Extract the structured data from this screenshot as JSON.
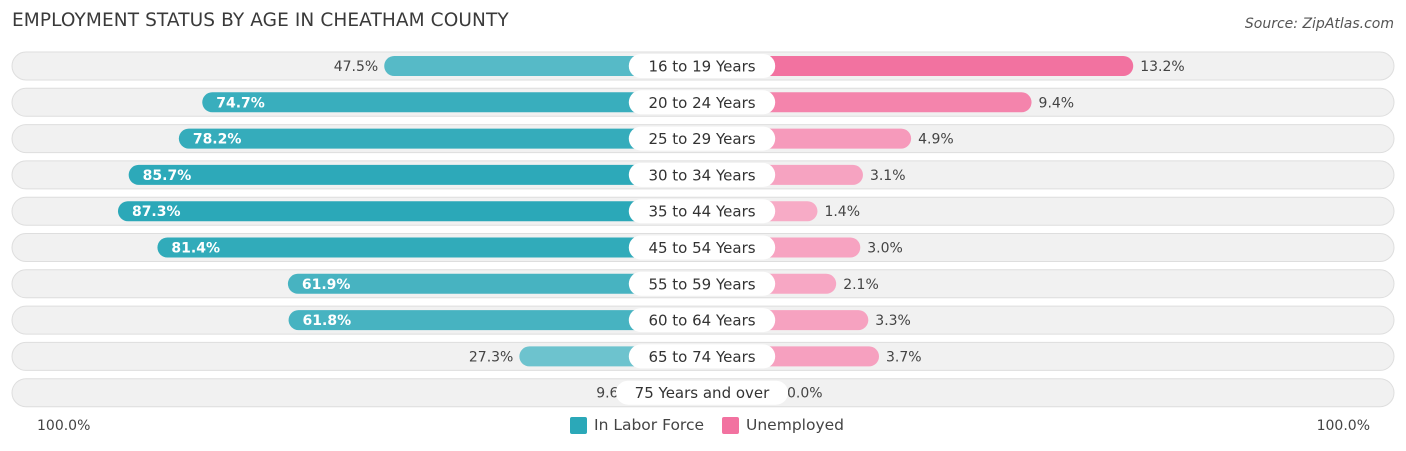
{
  "chart_data": {
    "type": "bar",
    "title": "EMPLOYMENT STATUS BY AGE IN CHEATHAM COUNTY",
    "source": "Source: ZipAtlas.com",
    "categories": [
      "16 to 19 Years",
      "20 to 24 Years",
      "25 to 29 Years",
      "30 to 34 Years",
      "35 to 44 Years",
      "45 to 54 Years",
      "55 to 59 Years",
      "60 to 64 Years",
      "65 to 74 Years",
      "75 Years and over"
    ],
    "series": [
      {
        "name": "In Labor Force",
        "values": [
          47.5,
          74.7,
          78.2,
          85.7,
          87.3,
          81.4,
          61.9,
          61.8,
          27.3,
          9.6
        ],
        "labels": [
          "47.5%",
          "74.7%",
          "78.2%",
          "85.7%",
          "87.3%",
          "81.4%",
          "61.9%",
          "61.8%",
          "27.3%",
          "9.6%"
        ],
        "color": "#2ba8b8"
      },
      {
        "name": "Unemployed",
        "values": [
          13.2,
          9.4,
          4.9,
          3.1,
          1.4,
          3.0,
          2.1,
          3.3,
          3.7,
          0.0
        ],
        "labels": [
          "13.2%",
          "9.4%",
          "4.9%",
          "3.1%",
          "1.4%",
          "3.0%",
          "2.1%",
          "3.3%",
          "3.7%",
          "0.0%"
        ],
        "color": "#f272a0"
      }
    ],
    "axis_left_label": "100.0%",
    "axis_right_label": "100.0%",
    "xlim": [
      -100,
      100
    ],
    "legend_position": "bottom-center"
  }
}
